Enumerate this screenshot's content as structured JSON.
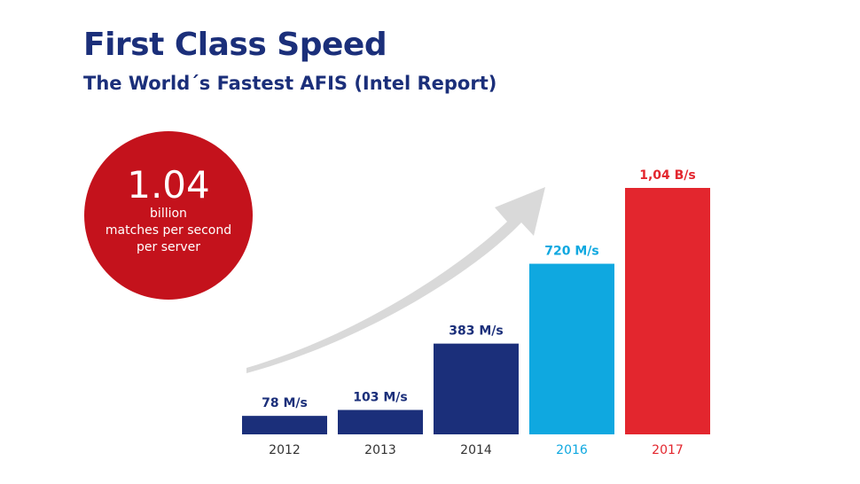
{
  "header": {
    "title": "First Class Speed",
    "subtitle": "The World´s Fastest AFIS (Intel Report)"
  },
  "badge": {
    "value": "1.04",
    "line1": "billion",
    "line2": "matches per second",
    "line3": "per server",
    "color": "#c4121c"
  },
  "chart_data": {
    "type": "bar",
    "categories": [
      "2012",
      "2013",
      "2014",
      "2016",
      "2017"
    ],
    "values": [
      78,
      103,
      383,
      720,
      1040
    ],
    "value_labels": [
      "78 M/s",
      "103 M/s",
      "383 M/s",
      "720 M/s",
      "1,04 B/s"
    ],
    "unit": "M/s",
    "colors": [
      "#1b2f7a",
      "#1b2f7a",
      "#1b2f7a",
      "#0fa8e0",
      "#e3262e"
    ],
    "label_colors": [
      "#1b2f7a",
      "#1b2f7a",
      "#1b2f7a",
      "#0fa8e0",
      "#e3262e"
    ],
    "ylim": [
      0,
      1040
    ],
    "title": "",
    "xlabel": "",
    "ylabel": "",
    "grid": false,
    "trend_arrow": true
  }
}
